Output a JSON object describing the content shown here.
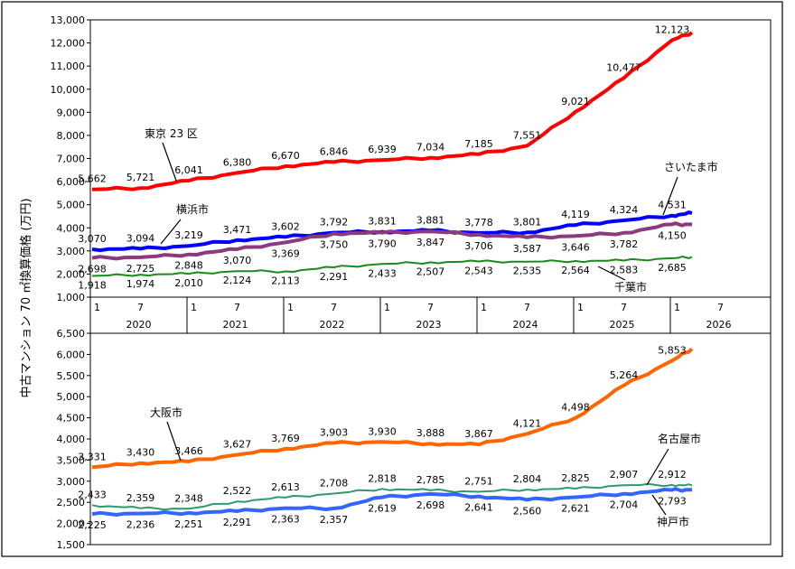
{
  "ylabel": "中古マンション 70 ㎡換算価格 (万円)",
  "x_axis": {
    "month_ticks": [
      "1",
      "7",
      "1",
      "7",
      "1",
      "7",
      "1",
      "7",
      "1",
      "7",
      "1",
      "7",
      "1",
      "7"
    ],
    "years": [
      "2020",
      "2021",
      "2022",
      "2023",
      "2024",
      "2025",
      "2026"
    ]
  },
  "chart_data": [
    {
      "type": "line",
      "panel": "top",
      "ylim": [
        1000,
        13000
      ],
      "yticks": [
        "1,000",
        "2,000",
        "3,000",
        "4,000",
        "5,000",
        "6,000",
        "7,000",
        "8,000",
        "9,000",
        "10,000",
        "11,000",
        "12,000",
        "13,000"
      ],
      "x_dates": [
        "2020-01",
        "2020-07",
        "2021-01",
        "2021-07",
        "2022-01",
        "2022-07",
        "2023-01",
        "2023-07",
        "2024-01",
        "2024-07",
        "2025-01",
        "2025-07",
        "2026-01"
      ],
      "series": [
        {
          "name": "東京 23 区",
          "color": "#ff0000",
          "width": 4,
          "values": [
            5662,
            5721,
            6041,
            6380,
            6670,
            6846,
            6939,
            7034,
            7185,
            7551,
            9021,
            10477,
            12123
          ],
          "labels": [
            "5,662",
            "5,721",
            "6,041",
            "6,380",
            "6,670",
            "6,846",
            "6,939",
            "7,034",
            "7,185",
            "7,551",
            "9,021",
            "10,477",
            "12,123"
          ],
          "last": 12450
        },
        {
          "name": "さいたま市",
          "color": "#0000ff",
          "width": 4,
          "values": [
            3070,
            3094,
            3219,
            3471,
            3602,
            3792,
            3831,
            3881,
            3778,
            3801,
            4119,
            4324,
            4531
          ],
          "labels": [
            "3,070",
            "3,094",
            "3,219",
            "3,471",
            "3,602",
            "3,792",
            "3,831",
            "3,881",
            "3,778",
            "3,801",
            "4,119",
            "4,324",
            "4,531"
          ],
          "last": 4640
        },
        {
          "name": "横浜市",
          "color": "#8b3a7e",
          "width": 4,
          "values": [
            2698,
            2725,
            2848,
            3070,
            3369,
            3750,
            3790,
            3847,
            3706,
            3587,
            3646,
            3782,
            4150
          ],
          "labels": [
            "2,698",
            "2,725",
            "2,848",
            "3,070",
            "3,369",
            "3,750",
            "3,790",
            "3,847",
            "3,706",
            "3,587",
            "3,646",
            "3,782",
            "4,150"
          ],
          "last": 4150
        },
        {
          "name": "千葉市",
          "color": "#1a8a1a",
          "width": 2,
          "values": [
            1918,
            1974,
            2010,
            2124,
            2113,
            2291,
            2433,
            2507,
            2543,
            2535,
            2564,
            2583,
            2685
          ],
          "labels": [
            "1,918",
            "1,974",
            "2,010",
            "2,124",
            "2,113",
            "2,291",
            "2,433",
            "2,507",
            "2,543",
            "2,535",
            "2,564",
            "2,583",
            "2,685"
          ],
          "last": 2740
        }
      ]
    },
    {
      "type": "line",
      "panel": "bottom",
      "ylim": [
        1500,
        6500
      ],
      "yticks": [
        "1,500",
        "2,000",
        "2,500",
        "3,000",
        "3,500",
        "4,000",
        "4,500",
        "5,000",
        "5,500",
        "6,000",
        "6,500"
      ],
      "x_dates": [
        "2020-01",
        "2020-07",
        "2021-01",
        "2021-07",
        "2022-01",
        "2022-07",
        "2023-01",
        "2023-07",
        "2024-01",
        "2024-07",
        "2025-01",
        "2025-07",
        "2026-01"
      ],
      "series": [
        {
          "name": "大阪市",
          "color": "#ff6600",
          "width": 4,
          "values": [
            3331,
            3430,
            3466,
            3627,
            3769,
            3903,
            3930,
            3888,
            3867,
            4121,
            4498,
            5264,
            5853
          ],
          "labels": [
            "3,331",
            "3,430",
            "3,466",
            "3,627",
            "3,769",
            "3,903",
            "3,930",
            "3,888",
            "3,867",
            "4,121",
            "4,498",
            "5,264",
            "5,853"
          ],
          "last": 6130
        },
        {
          "name": "名古屋市",
          "color": "#2e9a6a",
          "width": 2,
          "values": [
            2433,
            2359,
            2348,
            2522,
            2613,
            2708,
            2818,
            2785,
            2751,
            2804,
            2825,
            2907,
            2912
          ],
          "labels": [
            "2,433",
            "2,359",
            "2,348",
            "2,522",
            "2,613",
            "2,708",
            "2,818",
            "2,785",
            "2,751",
            "2,804",
            "2,825",
            "2,907",
            "2,912"
          ],
          "last": 2900
        },
        {
          "name": "神戸市",
          "color": "#3366ff",
          "width": 4,
          "values": [
            2225,
            2236,
            2251,
            2291,
            2363,
            2357,
            2619,
            2698,
            2641,
            2560,
            2621,
            2704,
            2793
          ],
          "labels": [
            "2,225",
            "2,236",
            "2,251",
            "2,291",
            "2,363",
            "2,357",
            "2,619",
            "2,698",
            "2,641",
            "2,560",
            "2,621",
            "2,704",
            "2,793"
          ],
          "last": 2800
        }
      ]
    }
  ]
}
